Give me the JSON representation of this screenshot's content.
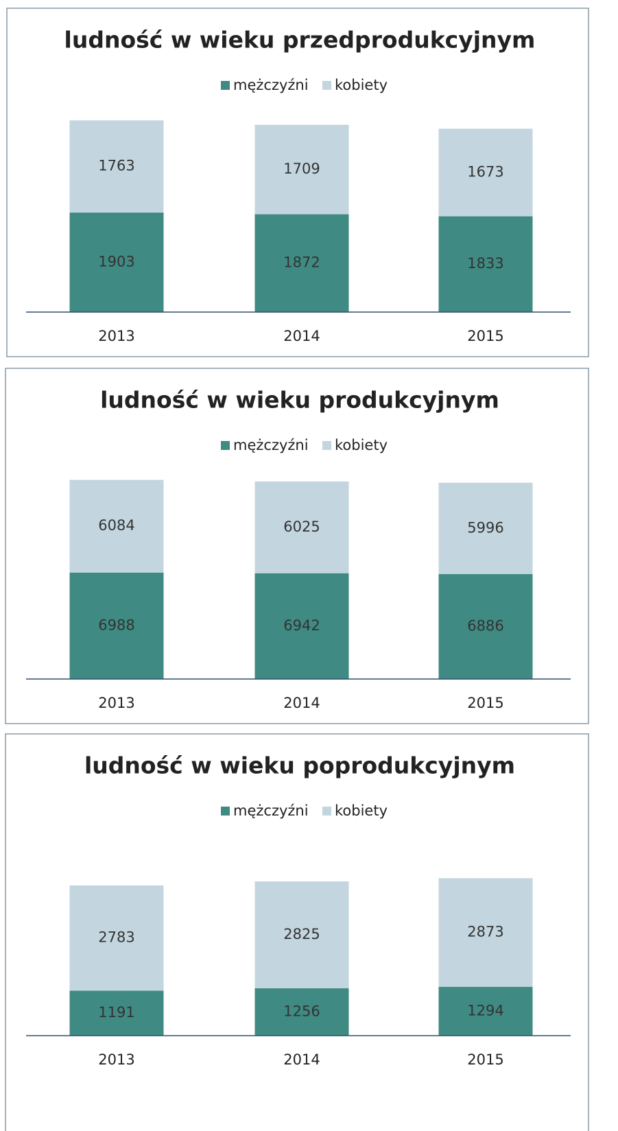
{
  "chart_data": [
    {
      "type": "bar",
      "stacked": true,
      "title": "ludność w wieku przedprodukcyjnym",
      "categories": [
        "2013",
        "2014",
        "2015"
      ],
      "ylim": [
        0,
        4000
      ],
      "series": [
        {
          "name": "mężczyźni",
          "color": "#3f8a82",
          "values": [
            1903,
            1872,
            1833
          ]
        },
        {
          "name": "kobiety",
          "color": "#c3d6df",
          "values": [
            1763,
            1709,
            1673
          ]
        }
      ]
    },
    {
      "type": "bar",
      "stacked": true,
      "title": "ludność w wieku produkcyjnym",
      "categories": [
        "2013",
        "2014",
        "2015"
      ],
      "ylim": [
        0,
        14000
      ],
      "series": [
        {
          "name": "mężczyźni",
          "color": "#3f8a82",
          "values": [
            6988,
            6942,
            6886
          ]
        },
        {
          "name": "kobiety",
          "color": "#c3d6df",
          "values": [
            6084,
            6025,
            5996
          ]
        }
      ]
    },
    {
      "type": "bar",
      "stacked": true,
      "title": "ludność w wieku poprodukcyjnym",
      "categories": [
        "2013",
        "2014",
        "2015"
      ],
      "ylim": [
        0,
        4500
      ],
      "series": [
        {
          "name": "mężczyźni",
          "color": "#3f8a82",
          "values": [
            1191,
            1256,
            1294
          ]
        },
        {
          "name": "kobiety",
          "color": "#c3d6df",
          "values": [
            2783,
            2825,
            2873
          ]
        }
      ]
    }
  ]
}
